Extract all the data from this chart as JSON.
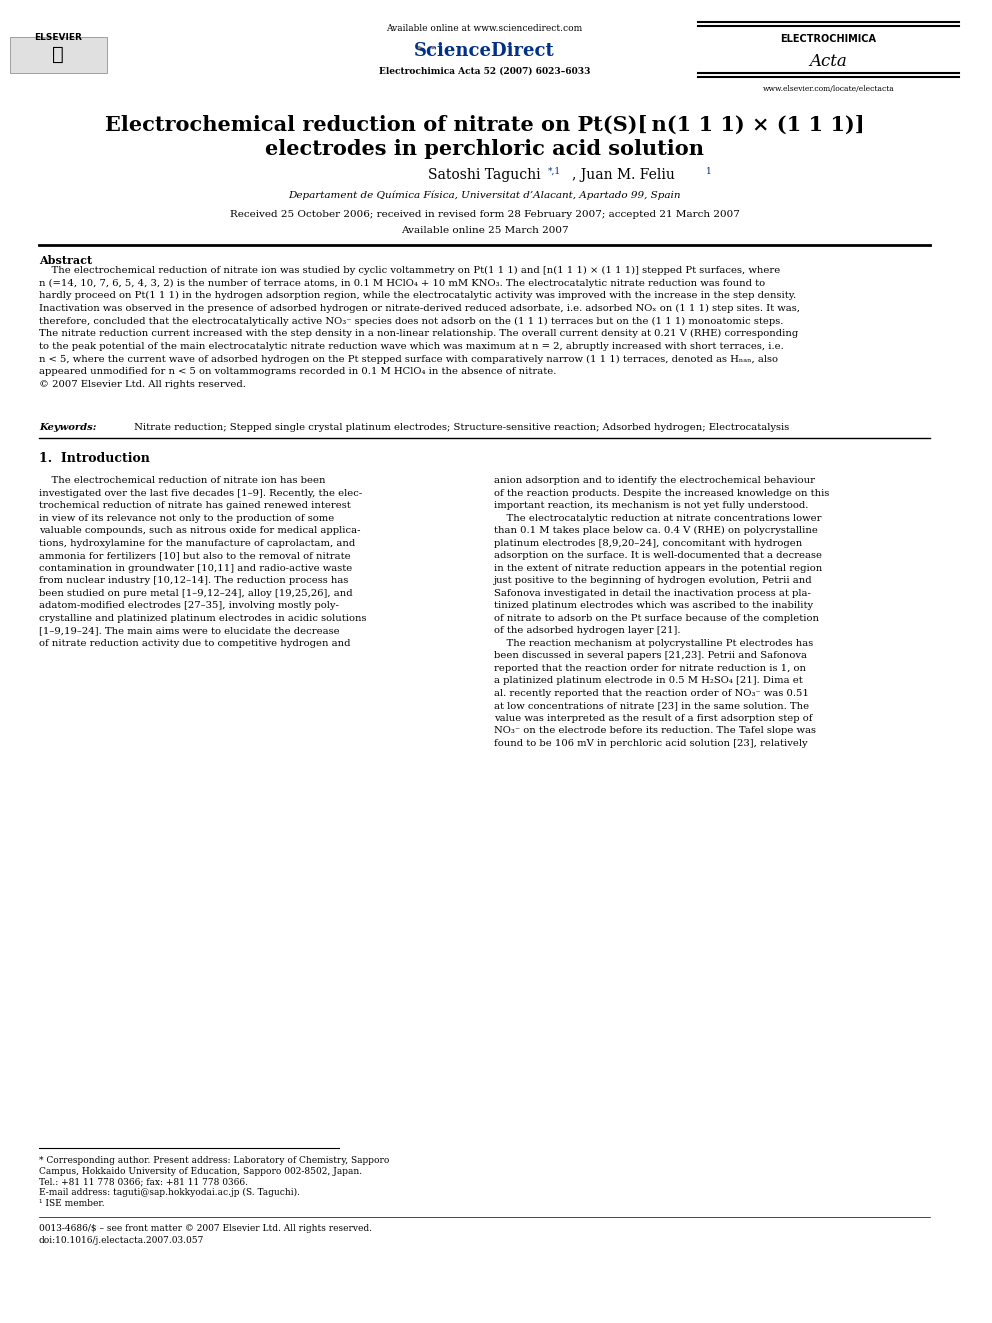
{
  "background_color": "#ffffff",
  "page_width": 9.92,
  "page_height": 13.23,
  "header": {
    "available_online": "Available online at www.sciencedirect.com",
    "sciencedirect": "ScienceDirect",
    "journal_info": "Electrochimica Acta 52 (2007) 6023–6033",
    "journal_name_top": "ELECTROCHIMICA",
    "journal_name_script": "Acta",
    "website": "www.elsevier.com/locate/electacta"
  },
  "title": "Electrochemical reduction of nitrate on Pt(S)[ n(1 1 1) × (1 1 1)]",
  "title_line2": "electrodes in perchloric acid solution",
  "authors": "Satoshi Taguchi ",
  "author_superscript": "*,¹",
  "authors2": ", Juan M. Feliu ",
  "author2_superscript": "¹",
  "affiliation": "Departament de Química Física, Universitat d’Alacant, Apartado 99, Spain",
  "received": "Received 25 October 2006; received in revised form 28 February 2007; accepted 21 March 2007",
  "available": "Available online 25 March 2007",
  "abstract_title": "Abstract",
  "abstract_text": "The electrochemical reduction of nitrate ion was studied by cyclic voltammetry on Pt(1 1 1) and [n(1 1 1) × (1 1 1)] stepped Pt surfaces, where n (=14, 10, 7, 6, 5, 4, 3, 2) is the number of terrace atoms, in 0.1 M HClO₄ + 10 mM KNO₃. The electrocatalytic nitrate reduction was found to hardly proceed on Pt(1 1 1) in the hydrogen adsorption region, while the electrocatalytic activity was improved with the increase in the step density. Inactivation was observed in the presence of adsorbed hydrogen or nitrate-derived reduced adsorbate, i.e. adsorbed NOₓ on (1 1 1) step sites. It was, therefore, concluded that the electrocatalytically active NO₃⁻ species does not adsorb on the (1 1 1) terraces but on the (1 1 1) monoatomic steps. The nitrate reduction current increased with the step density in a non-linear relationship. The overall current density at 0.21 V (RHE) corresponding to the peak potential of the main electrocatalytic nitrate reduction wave which was maximum at n = 2, abruptly increased with short terraces, i.e. n < 5, where the current wave of adsorbed hydrogen on the Pt stepped surface with comparatively narrow (1 1 1) terraces, denoted as Hₙₐₙ, also appeared unmodified for n < 5 on voltammograms recorded in 0.1 M HClO₄ in the absence of nitrate.",
  "copyright": "© 2007 Elsevier Ltd. All rights reserved.",
  "keywords_label": "Keywords: ",
  "keywords": " Nitrate reduction; Stepped single crystal platinum electrodes; Structure-sensitive reaction; Adsorbed hydrogen; Electrocatalysis",
  "section1_title": "1.  Introduction",
  "intro_col1": "The electrochemical reduction of nitrate ion has been investigated over the last five decades [1–9]. Recently, the electrochemical reduction of nitrate has gained renewed interest in view of its relevance not only to the production of some valuable compounds, such as nitrous oxide for medical applications, hydroxylamine for the manufacture of caprolactam, and ammonia for fertilizers [10] but also to the removal of nitrate contamination in groundwater [10,11] and radio-active waste from nuclear industry [10,12–14]. The reduction process has been studied on pure metal [1–9,12–24], alloy [19,25,26], and adatom-modified electrodes [27–35], involving mostly polycrystalline and platinized platinum electrodes in acidic solutions [1–9,19–24]. The main aims were to elucidate the decrease of nitrate reduction activity due to competitive hydrogen and",
  "intro_col2": "anion adsorption and to identify the electrochemical behaviour of the reaction products. Despite the increased knowledge on this important reaction, its mechanism is not yet fully understood.\n\n    The electrocatalytic reduction at nitrate concentrations lower than 0.1 M takes place below ca. 0.4 V (RHE) on polycrystalline platinum electrodes [8,9,20–24], concomitant with hydrogen adsorption on the surface. It is well-documented that a decrease in the extent of nitrate reduction appears in the potential region just positive to the beginning of hydrogen evolution, Petrii and Safonova investigated in detail the inactivation process at platinized platinum electrodes which was ascribed to the inability of nitrate to adsorb on the Pt surface because of the completion of the adsorbed hydrogen layer [21].\n\n    The reaction mechanism at polycrystalline Pt electrodes has been discussed in several papers [21,23]. Petrii and Safonova reported that the reaction order for nitrate reduction is 1, on a platinized platinum electrode in 0.5 M H₂SO₄ [21]. Dima et al. recently reported that the reaction order of NO₃⁻ was 0.51 at low concentrations of nitrate [23] in the same solution. The value was interpreted as the result of a first adsorption step of NO₃⁻ on the electrode before its reduction. The Tafel slope was found to be 106 mV in perchloric acid solution [23], relatively",
  "footnote_star": "* Corresponding author. Present address: Laboratory of Chemistry, Sapporo Campus, Hokkaido University of Education, Sapporo 002-8502, Japan.",
  "footnote_tel": "Tel.: +81 11 778 0366; fax: +81 11 778 0366.",
  "footnote_email": "E-mail address: taguti@sap.hokkyodai.ac.jp (S. Taguchi).",
  "footnote_1": "¹ ISE member.",
  "footer_issn": "0013-4686/$ – see front matter © 2007 Elsevier Ltd. All rights reserved.",
  "footer_doi": "doi:10.1016/j.electacta.2007.03.057"
}
